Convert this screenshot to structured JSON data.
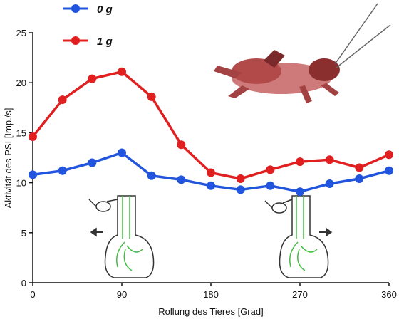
{
  "chart_data": {
    "type": "line",
    "xlabel": "Rollung des Tieres [Grad]",
    "ylabel": "Aktivität des PSI [Imp./s]",
    "xlim": [
      0,
      360
    ],
    "ylim": [
      0,
      25
    ],
    "xticks": [
      0,
      90,
      180,
      270,
      360
    ],
    "yticks": [
      0,
      5,
      10,
      15,
      20,
      25
    ],
    "grid": false,
    "legend_position": "top-left",
    "x": [
      0,
      30,
      60,
      90,
      120,
      150,
      180,
      210,
      240,
      270,
      300,
      330,
      360
    ],
    "series": [
      {
        "name": "0 g",
        "color": "#2255dd",
        "values": [
          10.8,
          11.2,
          12.0,
          13.0,
          10.7,
          10.3,
          9.7,
          9.3,
          9.7,
          9.1,
          9.9,
          10.4,
          11.2
        ]
      },
      {
        "name": "1 g",
        "color": "#e02020",
        "values": [
          14.6,
          18.3,
          20.4,
          21.1,
          18.6,
          13.8,
          11.0,
          10.4,
          11.3,
          12.1,
          12.3,
          11.5,
          12.8
        ]
      }
    ]
  },
  "illustrations": {
    "insect_photo": "cricket-photo",
    "left_inset_icon": "neuron-schematic-left-arrow-icon",
    "right_inset_icon": "neuron-schematic-right-arrow-icon"
  }
}
